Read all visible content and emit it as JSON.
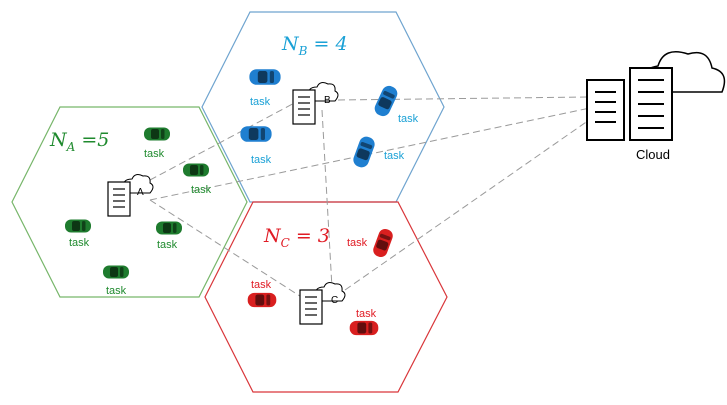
{
  "colors": {
    "cell_a": "#1f8a2e",
    "cell_b": "#1ba1d6",
    "cell_c": "#e01b24",
    "hex_a": "#77b66a",
    "hex_b": "#6fa4cf",
    "hex_c": "#d9363a",
    "car_a": "#1e7b2e",
    "car_b": "#1f7fd0",
    "car_c": "#d91f1f",
    "dash": "#9a9a9a"
  },
  "cells": {
    "a": {
      "label_main": "N",
      "label_sub": "A",
      "label_eq": " =5",
      "node": "A"
    },
    "b": {
      "label_main": "N",
      "label_sub": "B",
      "label_eq": " = 4",
      "node": "B"
    },
    "c": {
      "label_main": "N",
      "label_sub": "C",
      "label_eq": " = 3",
      "node": "C"
    }
  },
  "task_label": "task",
  "cloud": {
    "label": "Cloud"
  }
}
